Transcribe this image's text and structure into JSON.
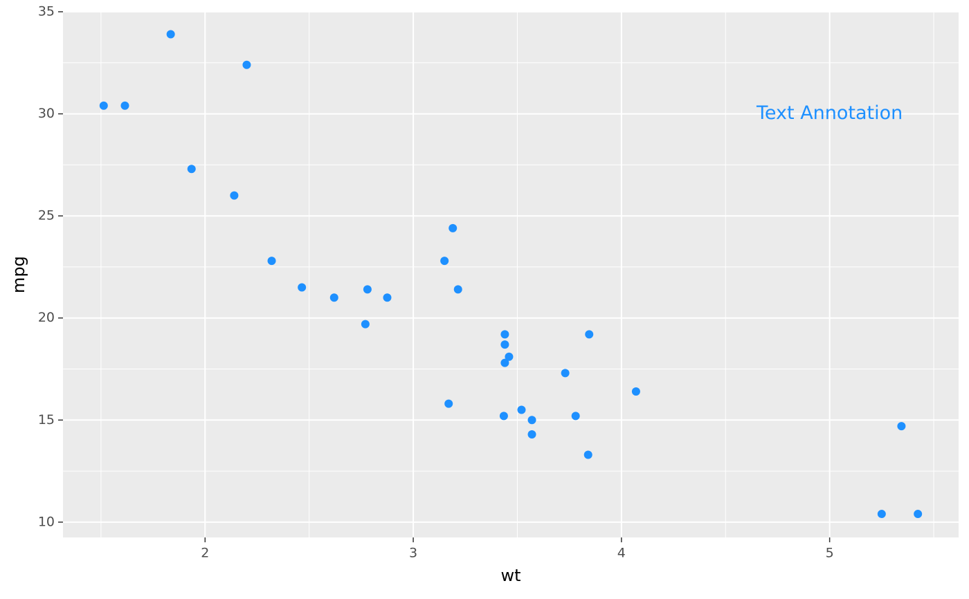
{
  "chart_data": {
    "type": "scatter",
    "x_label": "wt",
    "y_label": "mpg",
    "x": [
      2.62,
      2.875,
      2.32,
      3.215,
      3.44,
      3.46,
      3.57,
      3.19,
      3.15,
      3.44,
      3.44,
      4.07,
      3.73,
      3.78,
      5.25,
      5.424,
      5.345,
      2.2,
      1.615,
      1.835,
      2.465,
      3.52,
      3.435,
      3.84,
      3.845,
      1.935,
      2.14,
      1.513,
      3.17,
      2.77,
      3.57,
      2.78
    ],
    "values": [
      21.0,
      21.0,
      22.8,
      21.4,
      18.7,
      18.1,
      14.3,
      24.4,
      22.8,
      19.2,
      17.8,
      16.4,
      17.3,
      15.2,
      10.4,
      10.4,
      14.7,
      32.4,
      30.4,
      33.9,
      21.5,
      15.5,
      15.2,
      13.3,
      19.2,
      27.3,
      26.0,
      30.4,
      15.8,
      19.7,
      15.0,
      21.4
    ],
    "color": "#1e90ff",
    "xlim": [
      1.3175,
      5.6196
    ],
    "ylim": [
      9.25,
      35.0
    ],
    "xticks": [
      2,
      3,
      4,
      5
    ],
    "yticks": [
      10,
      15,
      20,
      25,
      30,
      35
    ],
    "x_minor_grid": [
      1.5,
      2.5,
      3.5,
      4.5,
      5.5
    ],
    "y_minor_grid": [
      12.5,
      17.5,
      22.5,
      27.5,
      32.5
    ],
    "grid": true,
    "annotation": {
      "text": "Text Annotation",
      "x": 5,
      "y": 30,
      "color": "#1e90ff"
    }
  }
}
